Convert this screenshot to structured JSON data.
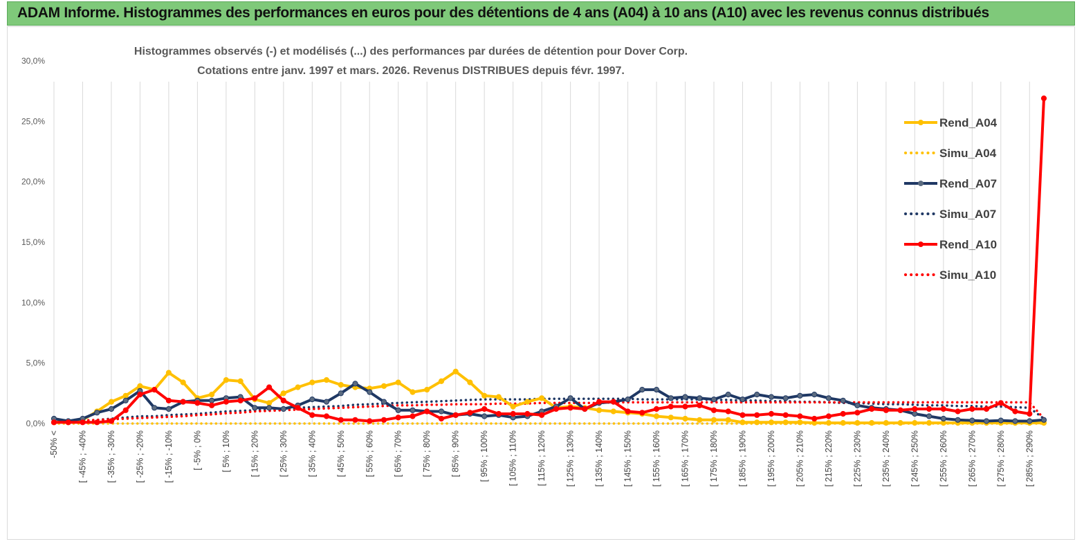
{
  "header": {
    "title": "ADAM Informe. Histogrammes des performances en euros pour des détentions de 4 ans (A04) à 10 ans (A10) avec les revenus connus distribués"
  },
  "chart_data": {
    "type": "line",
    "title": "Histogrammes observés (-) et modélisés (...) des performances par durées de détention pour Dover Corp.",
    "subtitle": "Cotations entre janv. 1997 et mars. 2026. Revenus DISTRIBUES depuis févr. 1997.",
    "xlabel": "",
    "ylabel": "",
    "ylim": [
      0,
      30
    ],
    "y_ticks": [
      "0,0%",
      "5,0%",
      "10,0%",
      "15,0%",
      "20,0%",
      "25,0%",
      "30,0%"
    ],
    "grid": "vertical",
    "legend_position": "right",
    "x_tick_labels": [
      "-50% <",
      "[ -45% ; -40%",
      "[ -35% ; -30%",
      "[ -25% ; -20%",
      "[ -15% ; -10%",
      "[ -5% ; 0%",
      "[ 5% ; 10%",
      "[ 15% ; 20%",
      "[ 25% ; 30%",
      "[ 35% ; 40%",
      "[ 45% ; 50%",
      "[ 55% ; 60%",
      "[ 65% ; 70%",
      "[ 75% ; 80%",
      "[ 85% ; 90%",
      "[ 95% ; 100%",
      "[ 105% ; 110%",
      "[ 115% ; 120%",
      "[ 125% ; 130%",
      "[ 135% ; 140%",
      "[ 145% ; 150%",
      "[ 155% ; 160%",
      "[ 165% ; 170%",
      "[ 175% ; 180%",
      "[ 185% ; 190%",
      "[ 195% ; 200%",
      "[ 205% ; 210%",
      "[ 215% ; 220%",
      "[ 225% ; 230%",
      "[ 235% ; 240%",
      "[ 245% ; 250%",
      "[ 255% ; 260%",
      "[ 265% ; 270%",
      "[ 275% ; 280%",
      "[ 285% ; 290%"
    ],
    "series": [
      {
        "name": "Rend_A04",
        "color": "#ffc000",
        "style": "solid",
        "values": [
          0.1,
          0.1,
          0.3,
          1.0,
          1.8,
          2.3,
          3.1,
          2.8,
          4.2,
          3.4,
          2.1,
          2.4,
          3.6,
          3.5,
          2.0,
          1.7,
          2.5,
          3.0,
          3.4,
          3.6,
          3.2,
          3.0,
          2.9,
          3.1,
          3.4,
          2.6,
          2.8,
          3.5,
          4.3,
          3.4,
          2.3,
          2.2,
          1.4,
          1.8,
          2.1,
          1.3,
          1.4,
          1.3,
          1.1,
          1.0,
          0.9,
          0.8,
          0.6,
          0.5,
          0.4,
          0.3,
          0.3,
          0.3,
          0.1,
          0.1,
          0.1,
          0.1,
          0.1,
          0.05,
          0.05,
          0.05,
          0.05,
          0.05,
          0.05,
          0.05,
          0.05,
          0.05,
          0.05,
          0.05,
          0.05,
          0.05,
          0.05,
          0.05,
          0.05,
          0.05
        ]
      },
      {
        "name": "Simu_A04",
        "color": "#ffc000",
        "style": "dotted",
        "values": [
          0.0,
          0.0,
          0.0,
          0.0,
          0.0,
          0.0,
          0.0,
          0.0,
          0.0,
          0.0,
          0.0,
          0.0,
          0.0,
          0.0,
          0.0,
          0.0,
          0.0,
          0.0,
          0.0,
          0.0,
          0.0,
          0.0,
          0.0,
          0.0,
          0.0,
          0.0,
          0.0,
          0.0,
          0.0,
          0.0,
          0.0,
          0.0,
          0.0,
          0.0,
          0.0,
          0.0,
          0.0,
          0.0,
          0.0,
          0.0,
          0.0,
          0.0,
          0.0,
          0.0,
          0.0,
          0.0,
          0.0,
          0.0,
          0.0,
          0.0,
          0.0,
          0.0,
          0.0,
          0.0,
          0.0,
          0.0,
          0.0,
          0.0,
          0.0,
          0.0,
          0.0,
          0.0,
          0.0,
          0.0,
          0.0,
          0.0,
          0.0,
          0.0,
          0.0,
          0.0
        ]
      },
      {
        "name": "Rend_A07",
        "color": "#1f3864",
        "style": "solid",
        "values": [
          0.4,
          0.2,
          0.4,
          0.9,
          1.2,
          1.9,
          2.7,
          1.3,
          1.2,
          1.8,
          1.9,
          1.9,
          2.1,
          2.2,
          1.3,
          1.3,
          1.2,
          1.5,
          2.0,
          1.8,
          2.5,
          3.3,
          2.6,
          1.8,
          1.1,
          1.1,
          1.0,
          1.0,
          0.7,
          0.8,
          0.6,
          0.7,
          0.5,
          0.6,
          1.0,
          1.4,
          2.1,
          1.2,
          1.7,
          1.8,
          2.0,
          2.8,
          2.8,
          2.1,
          2.2,
          2.1,
          2.0,
          2.4,
          2.0,
          2.4,
          2.2,
          2.1,
          2.3,
          2.4,
          2.1,
          1.9,
          1.5,
          1.3,
          1.2,
          1.1,
          0.8,
          0.6,
          0.4,
          0.3,
          0.25,
          0.2,
          0.25,
          0.2,
          0.2,
          0.3
        ]
      },
      {
        "name": "Simu_A07",
        "color": "#1f3864",
        "style": "dotted",
        "values": [
          0.1,
          0.15,
          0.2,
          0.3,
          0.4,
          0.5,
          0.6,
          0.6,
          0.7,
          0.75,
          0.8,
          0.9,
          1.0,
          1.05,
          1.1,
          1.15,
          1.2,
          1.3,
          1.35,
          1.4,
          1.45,
          1.55,
          1.6,
          1.65,
          1.7,
          1.75,
          1.8,
          1.85,
          1.9,
          1.95,
          2.0,
          2.0,
          2.0,
          2.0,
          2.05,
          2.05,
          2.05,
          2.05,
          2.05,
          2.05,
          2.05,
          2.0,
          2.0,
          2.0,
          2.0,
          2.0,
          1.95,
          1.95,
          1.9,
          1.9,
          1.85,
          1.85,
          1.8,
          1.8,
          1.75,
          1.7,
          1.7,
          1.65,
          1.6,
          1.6,
          1.55,
          1.5,
          1.5,
          1.45,
          1.45,
          1.4,
          1.4,
          1.35,
          1.3,
          0.4
        ]
      },
      {
        "name": "Rend_A10",
        "color": "#ff0000",
        "style": "solid",
        "values": [
          0.1,
          0.1,
          0.1,
          0.1,
          0.2,
          1.1,
          2.4,
          2.8,
          1.9,
          1.8,
          1.7,
          1.5,
          1.8,
          1.9,
          2.1,
          3.0,
          1.9,
          1.3,
          0.7,
          0.6,
          0.3,
          0.3,
          0.2,
          0.3,
          0.5,
          0.6,
          1.0,
          0.4,
          0.7,
          0.9,
          1.2,
          0.8,
          0.8,
          0.8,
          0.7,
          1.2,
          1.3,
          1.2,
          1.8,
          1.8,
          1.0,
          0.9,
          1.2,
          1.4,
          1.4,
          1.5,
          1.1,
          1.0,
          0.7,
          0.7,
          0.8,
          0.7,
          0.6,
          0.4,
          0.6,
          0.8,
          0.9,
          1.2,
          1.1,
          1.1,
          1.2,
          1.2,
          1.2,
          1.0,
          1.2,
          1.2,
          1.7,
          1.0,
          0.8,
          26.9
        ]
      },
      {
        "name": "Simu_A10",
        "color": "#ff0000",
        "style": "dotted",
        "values": [
          0.2,
          0.2,
          0.25,
          0.3,
          0.35,
          0.4,
          0.45,
          0.5,
          0.55,
          0.6,
          0.7,
          0.75,
          0.85,
          0.9,
          1.0,
          1.05,
          1.1,
          1.15,
          1.2,
          1.25,
          1.3,
          1.35,
          1.4,
          1.45,
          1.5,
          1.5,
          1.55,
          1.55,
          1.6,
          1.6,
          1.6,
          1.65,
          1.65,
          1.65,
          1.7,
          1.7,
          1.7,
          1.7,
          1.7,
          1.75,
          1.75,
          1.75,
          1.75,
          1.75,
          1.75,
          1.75,
          1.75,
          1.75,
          1.75,
          1.75,
          1.75,
          1.75,
          1.75,
          1.75,
          1.75,
          1.75,
          1.75,
          1.75,
          1.75,
          1.75,
          1.75,
          1.75,
          1.75,
          1.75,
          1.75,
          1.75,
          1.75,
          1.75,
          1.75,
          0.4
        ]
      }
    ]
  }
}
